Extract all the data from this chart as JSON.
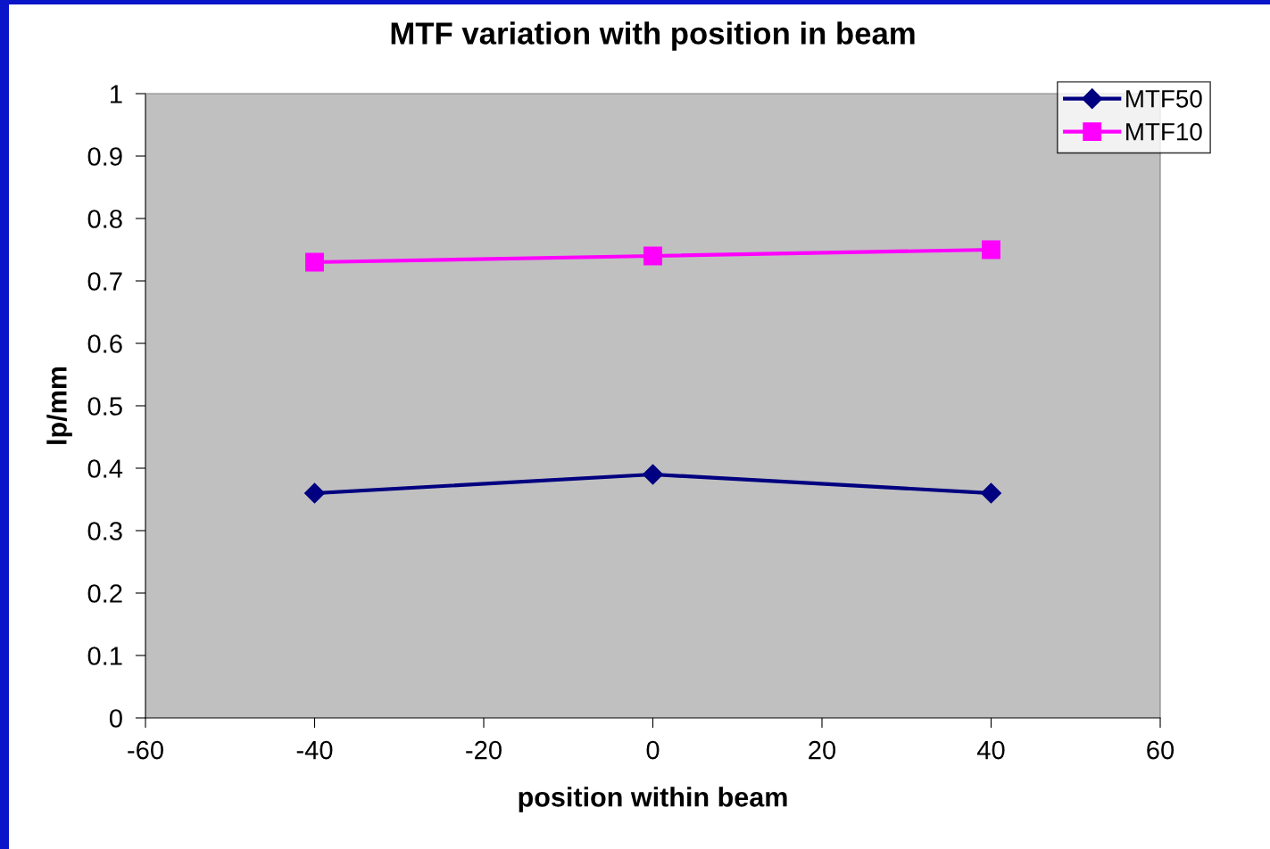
{
  "chart_data": {
    "type": "line",
    "title": "MTF variation with position in beam",
    "xlabel": "position within beam",
    "ylabel": "lp/mm",
    "x": [
      -40,
      0,
      40
    ],
    "series": [
      {
        "name": "MTF50",
        "color": "#000080",
        "marker": "diamond",
        "values": [
          0.36,
          0.39,
          0.36
        ]
      },
      {
        "name": "MTF10",
        "color": "#ff00ff",
        "marker": "square",
        "values": [
          0.73,
          0.74,
          0.75
        ]
      }
    ],
    "xlim": [
      -60,
      60
    ],
    "xticks": [
      -60,
      -40,
      -20,
      0,
      20,
      40,
      60
    ],
    "ylim": [
      0,
      1
    ],
    "yticks": [
      0,
      0.1,
      0.2,
      0.3,
      0.4,
      0.5,
      0.6,
      0.7,
      0.8,
      0.9,
      1
    ],
    "grid": false,
    "legend": "top right",
    "line_style": "solid"
  }
}
